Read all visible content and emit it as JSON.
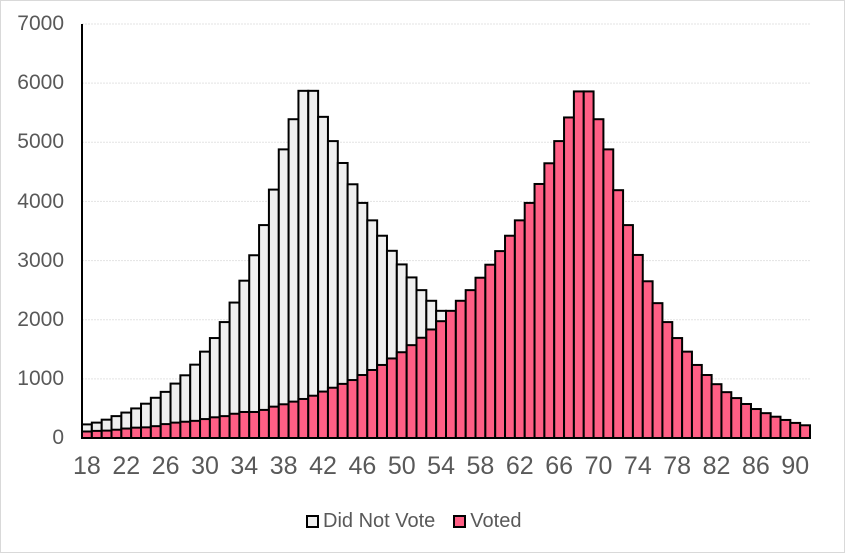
{
  "chart_data": {
    "type": "bar",
    "bar_mode": "overlay",
    "title": "",
    "xlabel": "",
    "ylabel": "",
    "ylim": [
      0,
      7000
    ],
    "yticks": [
      0,
      1000,
      2000,
      3000,
      4000,
      5000,
      6000,
      7000
    ],
    "xtick_labels": [
      "18",
      "22",
      "26",
      "30",
      "34",
      "38",
      "42",
      "46",
      "50",
      "54",
      "58",
      "62",
      "66",
      "70",
      "74",
      "78",
      "82",
      "86",
      "90"
    ],
    "grid": "horizontal",
    "legend_position": "bottom",
    "categories": [
      18,
      19,
      20,
      21,
      22,
      23,
      24,
      25,
      26,
      27,
      28,
      29,
      30,
      31,
      32,
      33,
      34,
      35,
      36,
      37,
      38,
      39,
      40,
      41,
      42,
      43,
      44,
      45,
      46,
      47,
      48,
      49,
      50,
      51,
      52,
      53,
      54,
      55,
      56,
      57,
      58,
      59,
      60,
      61,
      62,
      63,
      64,
      65,
      66,
      67,
      68,
      69,
      70,
      71,
      72,
      73,
      74,
      75,
      76,
      77,
      78,
      79,
      80,
      81,
      82,
      83,
      84,
      85,
      86,
      87,
      88,
      89,
      90,
      91
    ],
    "series": [
      {
        "name": "Did Not Vote",
        "color": "#efefef",
        "values": [
          230,
          260,
          310,
          370,
          430,
          500,
          580,
          680,
          780,
          920,
          1060,
          1240,
          1460,
          1690,
          1960,
          2290,
          2660,
          3090,
          3600,
          4200,
          4880,
          5390,
          5870,
          5870,
          5430,
          5020,
          4650,
          4290,
          3975,
          3680,
          3420,
          3165,
          2935,
          2715,
          2500,
          2320,
          2150,
          1975,
          1835,
          1695,
          1570,
          1450,
          1345,
          1235,
          1150,
          1065,
          980,
          915,
          850,
          785,
          715,
          660,
          615,
          570,
          530,
          475,
          440,
          410,
          370,
          350,
          320,
          290,
          275,
          260,
          235,
          200,
          180,
          175,
          160,
          140,
          125,
          120,
          110,
          100
        ]
      },
      {
        "name": "Voted",
        "color": "#ff5f85",
        "values": [
          110,
          120,
          125,
          140,
          160,
          175,
          180,
          200,
          235,
          260,
          275,
          290,
          320,
          350,
          370,
          410,
          440,
          440,
          475,
          530,
          570,
          615,
          660,
          715,
          785,
          850,
          915,
          980,
          1065,
          1150,
          1235,
          1345,
          1450,
          1570,
          1695,
          1835,
          1975,
          2150,
          2320,
          2500,
          2710,
          2930,
          3160,
          3420,
          3680,
          3975,
          4295,
          4645,
          5020,
          5420,
          5860,
          5860,
          5390,
          4880,
          4190,
          3600,
          3095,
          2650,
          2280,
          1960,
          1690,
          1460,
          1235,
          1065,
          910,
          775,
          675,
          575,
          490,
          420,
          360,
          305,
          255,
          215
        ]
      }
    ]
  },
  "legend": {
    "items": [
      {
        "label": "Did Not Vote",
        "color": "#efefef"
      },
      {
        "label": "Voted",
        "color": "#ff5f85"
      }
    ]
  },
  "axes": {
    "y_labels": [
      "7000",
      "6000",
      "5000",
      "4000",
      "3000",
      "2000",
      "1000",
      "0"
    ]
  }
}
